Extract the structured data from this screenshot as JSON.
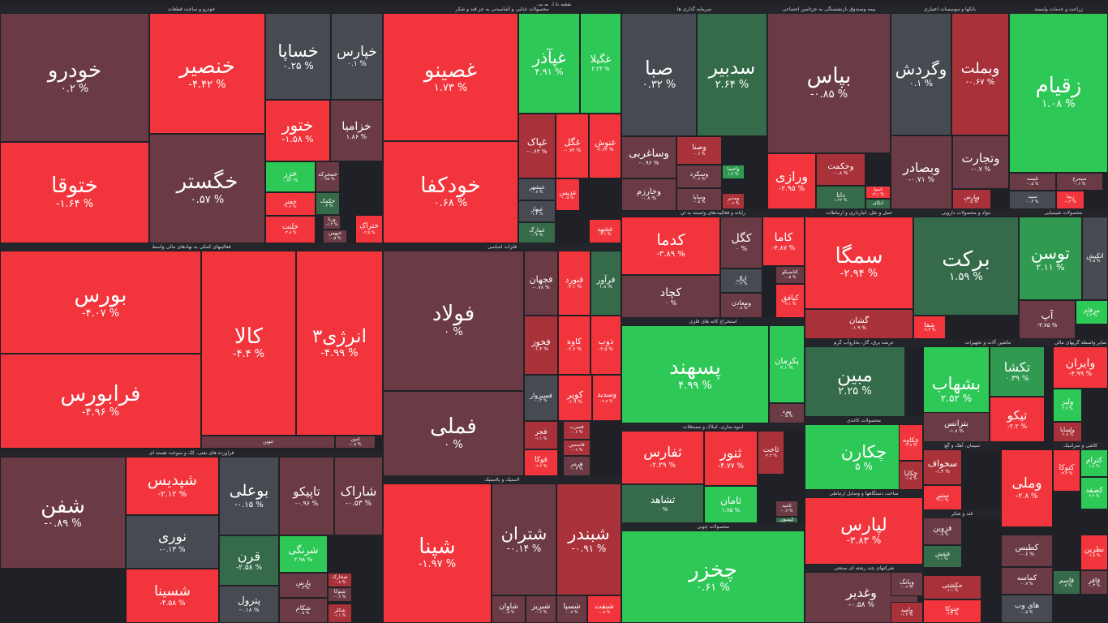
{
  "title": "نقشه بازار بورس",
  "colors": {
    "pos_strong": "#2ec857",
    "pos_mid": "#2f9a50",
    "pos_dim": "#356b4a",
    "neutral": "#484a52",
    "neg_dim": "#6a3b44",
    "neg_mid": "#a8313a",
    "neg_strong": "#f2353c"
  },
  "sectors": [
    {
      "label": "خودرو و ساخت قطعات"
    },
    {
      "label": "محصولات غذایی و آشامیدنی به جز قند و شکر"
    },
    {
      "label": "سرمایه گذاری ها"
    },
    {
      "label": "بیمه وصندوق بازنشستگی به جزتامین اجتماعی"
    },
    {
      "label": "بانکها و موسسات اعتباری"
    },
    {
      "label": "زراعت و خدمات وابسته"
    },
    {
      "label": "فعالیتهای کمکی به نهادهای مالی واسط"
    },
    {
      "label": "فلزات اساسی"
    },
    {
      "label": "رایانه و فعالیت‌های وابسته به آن"
    },
    {
      "label": "حمل و نقل، انبارداری و ارتباطات"
    },
    {
      "label": "مواد و محصولات دارویی"
    },
    {
      "label": "محصولات شیمیایی"
    },
    {
      "label": "فراورده های نفتی، کک و سوخت هسته ای"
    },
    {
      "label": "لاستیک و پلاستیک"
    },
    {
      "label": "استخراج کانه های فلزی"
    },
    {
      "label": "عرضه برق، گاز، بخاروآب گرم"
    },
    {
      "label": "ماشین آلات و تجهیزات"
    },
    {
      "label": "سایر واسطه گریهای مالی"
    },
    {
      "label": "انبوه سازی، املاک و مستغلات"
    },
    {
      "label": "محصولات کاغذی"
    },
    {
      "label": "سیمان، آهک و گچ"
    },
    {
      "label": "کاشی و سرامیک"
    },
    {
      "label": "محصولات چوبی"
    },
    {
      "label": "ساخت دستگاهها و وسایل ارتباطی"
    },
    {
      "label": "قند و شکر"
    },
    {
      "label": "شرکتهای چند رشته ای صنعتی"
    }
  ],
  "tiles": [
    {
      "sym": "خودرو",
      "pct": "۰.۲ %",
      "c": "neg_dim"
    },
    {
      "sym": "ختوقا",
      "pct": "-۱.۶۴ %",
      "c": "neg_strong"
    },
    {
      "sym": "خنصیر",
      "pct": "-۴.۴۲ %",
      "c": "neg_strong"
    },
    {
      "sym": "خگستر",
      "pct": "۰.۵۷ %",
      "c": "neg_dim"
    },
    {
      "sym": "خساپا",
      "pct": "۰.۲۵ %",
      "c": "neutral"
    },
    {
      "sym": "خپارس",
      "pct": "۰.۱ %",
      "c": "neutral"
    },
    {
      "sym": "ختور",
      "pct": "-۱.۵۸ %",
      "c": "neg_strong"
    },
    {
      "sym": "خزامیا",
      "pct": "۱.۸۶ %",
      "c": "neg_dim"
    },
    {
      "sym": "خزر",
      "pct": "۰.۷۲ %",
      "c": "pos_strong"
    },
    {
      "sym": "خمحرکه",
      "pct": "-۰.۸۸ %",
      "c": "neg_dim"
    },
    {
      "sym": "خفنر",
      "pct": "-۱.۶ %",
      "c": "neg_strong"
    },
    {
      "sym": "خکمک",
      "pct": "۰.۴ %",
      "c": "pos_dim"
    },
    {
      "sym": "خلنت",
      "pct": "-۳.۸ %",
      "c": "neg_strong"
    },
    {
      "sym": "ورنا",
      "pct": "-۱.۲ %",
      "c": "neg_dim"
    },
    {
      "sym": "خبهمن",
      "pct": "-۰.۵ %",
      "c": "neg_dim"
    },
    {
      "sym": "ختراک",
      "pct": "-۲.۵ %",
      "c": "neg_strong"
    },
    {
      "sym": "غصینو",
      "pct": "۱.۷۳ %",
      "c": "neg_strong"
    },
    {
      "sym": "خودکفا",
      "pct": "۰.۶۸ %",
      "c": "neg_strong"
    },
    {
      "sym": "غپآذر",
      "pct": "۴.۹۱ %",
      "c": "pos_strong"
    },
    {
      "sym": "غگیلا",
      "pct": "۳.۲۴ %",
      "c": "pos_strong"
    },
    {
      "sym": "غپاک",
      "pct": "-۰.۶۳ %",
      "c": "neg_mid"
    },
    {
      "sym": "غگل",
      "pct": "-۰.۷۳ %",
      "c": "neg_strong"
    },
    {
      "sym": "غنوش",
      "pct": "-۲.۷۴ %",
      "c": "neg_strong"
    },
    {
      "sym": "غبشهر",
      "pct": "-۰.۸ %",
      "c": "neutral"
    },
    {
      "sym": "غبهار",
      "pct": "-۱.۲ %",
      "c": "neutral"
    },
    {
      "sym": "غمارگ",
      "pct": "-۰.۳ %",
      "c": "pos_dim"
    },
    {
      "sym": "غدیس",
      "pct": "-۰.۵ %",
      "c": "neg_strong"
    },
    {
      "sym": "غشهد",
      "pct": "-۲.۱ %",
      "c": "neg_strong"
    },
    {
      "sym": "صبا",
      "pct": "۰.۳۲ %",
      "c": "neutral"
    },
    {
      "sym": "سدبیر",
      "pct": "۲.۶۴ %",
      "c": "pos_dim"
    },
    {
      "sym": "وساغربی",
      "pct": "-۰.۹۶ %",
      "c": "neg_dim"
    },
    {
      "sym": "وصنا",
      "pct": "-۰.۶ %",
      "c": "neg_mid"
    },
    {
      "sym": "وسکرد",
      "pct": "-۰.۷ %",
      "c": "neg_dim"
    },
    {
      "sym": "وخارزم",
      "pct": "-۰.۸ %",
      "c": "neg_dim"
    },
    {
      "sym": "وساپا",
      "pct": "-۰.۵ %",
      "c": "neg_dim"
    },
    {
      "sym": "واحصا",
      "pct": "۱.۲ %",
      "c": "pos_mid"
    },
    {
      "sym": "ومدیر",
      "pct": "-۰.۹ %",
      "c": "neg_mid"
    },
    {
      "sym": "بپاس",
      "pct": "-۰.۸۵ %",
      "c": "neg_dim"
    },
    {
      "sym": "ورازی",
      "pct": "-۲.۹۵ %",
      "c": "neg_strong"
    },
    {
      "sym": "وحکمت",
      "pct": "-۰.۸ %",
      "c": "neg_mid"
    },
    {
      "sym": "دانا",
      "pct": "۱.۴۲ %",
      "c": "pos_dim"
    },
    {
      "sym": "اسیا",
      "pct": "-۲.۱ %",
      "c": "neg_strong"
    },
    {
      "sym": "اتکای",
      "pct": "۰.۵ %",
      "c": "pos_dim"
    },
    {
      "sym": "وگردش",
      "pct": "۰.۱ %",
      "c": "neutral"
    },
    {
      "sym": "وبملت",
      "pct": "-۰.۶۷ %",
      "c": "neg_mid"
    },
    {
      "sym": "وبصادر",
      "pct": "-۰.۷۱ %",
      "c": "neg_dim"
    },
    {
      "sym": "وتجارت",
      "pct": "-۰.۷ %",
      "c": "neg_dim"
    },
    {
      "sym": "وپارس",
      "pct": "-۰.۵ %",
      "c": "neg_mid"
    },
    {
      "sym": "زقیام",
      "pct": "۱.۰۸ %",
      "c": "pos_strong"
    },
    {
      "sym": "تلیسه",
      "pct": "-۰.۵ %",
      "c": "neg_dim"
    },
    {
      "sym": "سیمرغ",
      "pct": "-۰.۶ %",
      "c": "neg_dim"
    },
    {
      "sym": "سپید",
      "pct": "-۰.۴ %",
      "c": "neutral"
    },
    {
      "sym": "زبینا",
      "pct": "-۱.۲ %",
      "c": "neg_strong"
    },
    {
      "sym": "بورس",
      "pct": "-۴.۰۷ %",
      "c": "neg_strong"
    },
    {
      "sym": "فرابورس",
      "pct": "-۴.۹۶ %",
      "c": "neg_strong"
    },
    {
      "sym": "کالا",
      "pct": "-۴.۴ %",
      "c": "neg_strong"
    },
    {
      "sym": "انرژی۳",
      "pct": "-۴.۹۹ %",
      "c": "neg_strong"
    },
    {
      "sym": "ثنوین",
      "pct": "",
      "c": "neg_dim"
    },
    {
      "sym": "امین",
      "pct": "-۰.۸ %",
      "c": "neg_dim"
    },
    {
      "sym": "فولاد",
      "pct": "۰ %",
      "c": "neg_dim"
    },
    {
      "sym": "فملی",
      "pct": "۰ %",
      "c": "neg_dim"
    },
    {
      "sym": "فجهان",
      "pct": "-۰.۷۸ %",
      "c": "neg_dim"
    },
    {
      "sym": "فنورد",
      "pct": "-۳.۱ %",
      "c": "neg_strong"
    },
    {
      "sym": "فرآور",
      "pct": "۱.۸ %",
      "c": "pos_dim"
    },
    {
      "sym": "فخوز",
      "pct": "-۱.۴ %",
      "c": "neg_mid"
    },
    {
      "sym": "کاوه",
      "pct": "-۲.۶ %",
      "c": "neg_strong"
    },
    {
      "sym": "ذوب",
      "pct": "-۳.۵ %",
      "c": "neg_strong"
    },
    {
      "sym": "فسبزوار",
      "pct": "-۰.۴ %",
      "c": "neutral"
    },
    {
      "sym": "کویر",
      "pct": "-۱.۹ %",
      "c": "neg_strong"
    },
    {
      "sym": "وسدید",
      "pct": "-۲.۸ %",
      "c": "neg_strong"
    },
    {
      "sym": "فجر",
      "pct": "-۱.۱ %",
      "c": "neg_mid"
    },
    {
      "sym": "فسرب",
      "pct": "-۰.۶ %",
      "c": "neg_mid"
    },
    {
      "sym": "فاسمین",
      "pct": "-۰.۹ %",
      "c": "neg_mid"
    },
    {
      "sym": "فوکا",
      "pct": "-۲.۴ %",
      "c": "neg_strong"
    },
    {
      "sym": "هرمز",
      "pct": "-۰.۷ %",
      "c": "neg_dim"
    },
    {
      "sym": "کدما",
      "pct": "-۳.۸۹ %",
      "c": "neg_strong"
    },
    {
      "sym": "کچاد",
      "pct": "۰ %",
      "c": "neg_dim"
    },
    {
      "sym": "کگل",
      "pct": "۰ %",
      "c": "neg_dim"
    },
    {
      "sym": "کاما",
      "pct": "-۴.۸۷ %",
      "c": "neg_strong"
    },
    {
      "sym": "اپال",
      "pct": "-۰.۳ %",
      "c": "neutral"
    },
    {
      "sym": "کتاصیکو",
      "pct": "-۰.۵ %",
      "c": "neg_dim"
    },
    {
      "sym": "ومعادن",
      "pct": "-۰.۸ %",
      "c": "neg_dim"
    },
    {
      "sym": "کیافق",
      "pct": "-۲.۱ %",
      "c": "neg_strong"
    },
    {
      "sym": "سمگا",
      "pct": "-۲.۹۴ %",
      "c": "neg_strong"
    },
    {
      "sym": "گشان",
      "pct": "-۱.۹ %",
      "c": "neg_mid"
    },
    {
      "sym": "برکت",
      "pct": "۱.۵۹ %",
      "c": "pos_dim"
    },
    {
      "sym": "شفا",
      "pct": "-۲.۳ %",
      "c": "neg_strong"
    },
    {
      "sym": "توسن",
      "pct": "۲.۱۱ %",
      "c": "pos_mid"
    },
    {
      "sym": "اتکیش",
      "pct": "۲.۵ %",
      "c": "neutral"
    },
    {
      "sym": "آپ",
      "pct": "-۳.۷۵ %",
      "c": "neg_dim"
    },
    {
      "sym": "مرقام",
      "pct": "۴.۲ %",
      "c": "pos_strong"
    },
    {
      "sym": "پسهند",
      "pct": "۴.۹۹ %",
      "c": "pos_strong"
    },
    {
      "sym": "پکرمان",
      "pct": "۳.۱ %",
      "c": "pos_strong"
    },
    {
      "sym": "پیزد",
      "pct": "-۰.۵ %",
      "c": "neg_dim"
    },
    {
      "sym": "ثفارس",
      "pct": "-۲.۲۹ %",
      "c": "neg_strong"
    },
    {
      "sym": "ثشاهد",
      "pct": "۰ %",
      "c": "pos_dim"
    },
    {
      "sym": "ثنور",
      "pct": "-۴.۷۷ %",
      "c": "neg_strong"
    },
    {
      "sym": "ثامان",
      "pct": "۱.۷۵ %",
      "c": "pos_strong"
    },
    {
      "sym": "ثاخت",
      "pct": "-۲.۳ %",
      "c": "neg_mid"
    },
    {
      "sym": "ثامید",
      "pct": "-۰.۷ %",
      "c": "neg_dim"
    },
    {
      "sym": "کیسون",
      "pct": "۰.۵ %",
      "c": "pos_dim"
    },
    {
      "sym": "چخزر",
      "pct": "۰.۶۱ %",
      "c": "pos_strong"
    },
    {
      "sym": "مبین",
      "pct": "۲.۲۵ %",
      "c": "pos_dim"
    },
    {
      "sym": "چکارن",
      "pct": "۵ %",
      "c": "pos_strong"
    },
    {
      "sym": "چکاوه",
      "pct": "-۲.۸ %",
      "c": "neg_strong"
    },
    {
      "sym": "چکاپا",
      "pct": "-۱.۵ %",
      "c": "neg_mid"
    },
    {
      "sym": "لپارس",
      "pct": "-۳.۸۳ %",
      "c": "neg_strong"
    },
    {
      "sym": "وغدیر",
      "pct": "-۰.۵۸ %",
      "c": "neg_dim"
    },
    {
      "sym": "وبانک",
      "pct": "-۰.۹ %",
      "c": "neg_dim"
    },
    {
      "sym": "وامید",
      "pct": "-۱.۳ %",
      "c": "neg_mid"
    },
    {
      "sym": "بشهاب",
      "pct": "۲.۵۲ %",
      "c": "pos_strong"
    },
    {
      "sym": "بترانس",
      "pct": "-۱.۸ %",
      "c": "neg_dim"
    },
    {
      "sym": "تکشا",
      "pct": "۰.۳۹ %",
      "c": "pos_mid"
    },
    {
      "sym": "تیکو",
      "pct": "-۲.۲ %",
      "c": "neg_strong"
    },
    {
      "sym": "وایران",
      "pct": "-۴.۹۹ %",
      "c": "neg_strong"
    },
    {
      "sym": "ولیز",
      "pct": "۲.۷ %",
      "c": "pos_strong"
    },
    {
      "sym": "ولساپا",
      "pct": "-۱.۸ %",
      "c": "neg_mid"
    },
    {
      "sym": "سخواف",
      "pct": "-۱.۴ %",
      "c": "neg_mid"
    },
    {
      "sym": "ستیر",
      "pct": "-۲.۱ %",
      "c": "neg_strong"
    },
    {
      "sym": "وملی",
      "pct": "-۲.۸ %",
      "c": "neg_strong"
    },
    {
      "sym": "کتوکا",
      "pct": "-۳.۲ %",
      "c": "neg_strong"
    },
    {
      "sym": "کترام",
      "pct": "۱.۸ %",
      "c": "pos_strong"
    },
    {
      "sym": "کصفد",
      "pct": "۲.۴ %",
      "c": "pos_strong"
    },
    {
      "sym": "قزوین",
      "pct": "-۰.۸ %",
      "c": "neg_dim"
    },
    {
      "sym": "قنقش",
      "pct": "۱.۱ %",
      "c": "pos_dim"
    },
    {
      "sym": "کطبس",
      "pct": "-۰.۶ %",
      "c": "neg_dim"
    },
    {
      "sym": "کماسه",
      "pct": "-۰.۷ %",
      "c": "neg_dim"
    },
    {
      "sym": "حکشتی",
      "pct": "-۱.۱ %",
      "c": "neg_mid"
    },
    {
      "sym": "حتوکا",
      "pct": "-۲.۴ %",
      "c": "neg_strong"
    },
    {
      "sym": "های وب",
      "pct": "-۰.۵ %",
      "c": "neutral"
    },
    {
      "sym": "نطرین",
      "pct": "-۱.۸ %",
      "c": "neg_strong"
    },
    {
      "sym": "قاسم",
      "pct": "۰.۸ %",
      "c": "pos_dim"
    },
    {
      "sym": "فافر",
      "pct": "-۰.۳ %",
      "c": "neg_dim"
    },
    {
      "sym": "شفن",
      "pct": "-۰.۸۹ %",
      "c": "neg_dim"
    },
    {
      "sym": "شپدیس",
      "pct": "-۲.۱۲ %",
      "c": "neg_strong"
    },
    {
      "sym": "نوری",
      "pct": "-۰.۱۳ %",
      "c": "neutral"
    },
    {
      "sym": "شسینا",
      "pct": "-۴.۵۸ %",
      "c": "neg_strong"
    },
    {
      "sym": "بوعلی",
      "pct": "-۰.۱۵ %",
      "c": "neutral"
    },
    {
      "sym": "تاپیکو",
      "pct": "-۰.۹۶ %",
      "c": "neg_dim"
    },
    {
      "sym": "شاراک",
      "pct": "-۰.۵۳ %",
      "c": "neg_dim"
    },
    {
      "sym": "قرن",
      "pct": "-۲.۵۸ %",
      "c": "pos_dim"
    },
    {
      "sym": "شرنگی",
      "pct": "۲.۹۸ %",
      "c": "pos_strong"
    },
    {
      "sym": "پترول",
      "pct": "-۰.۱۸ %",
      "c": "neutral"
    },
    {
      "sym": "پارس",
      "pct": "-۰.۴ %",
      "c": "neg_dim"
    },
    {
      "sym": "شکام",
      "pct": "-۰.۵ %",
      "c": "neg_dim"
    },
    {
      "sym": "شخارک",
      "pct": "-۰.۸ %",
      "c": "neg_mid"
    },
    {
      "sym": "شتوکا",
      "pct": "-۰.۶ %",
      "c": "neg_dim"
    },
    {
      "sym": "شکلر",
      "pct": "-۱.۱ %",
      "c": "neg_mid"
    },
    {
      "sym": "شپنا",
      "pct": "-۱.۹۷ %",
      "c": "neg_strong"
    },
    {
      "sym": "شتران",
      "pct": "-۰.۱۴ %",
      "c": "neg_dim"
    },
    {
      "sym": "شبندر",
      "pct": "-۰.۹۱ %",
      "c": "neg_mid"
    },
    {
      "sym": "شاوان",
      "pct": "-۰.۵ %",
      "c": "neg_dim"
    },
    {
      "sym": "شبریز",
      "pct": "-۰.۶ %",
      "c": "neg_dim"
    },
    {
      "sym": "شسپا",
      "pct": "-۰.۷ %",
      "c": "neg_dim"
    },
    {
      "sym": "شنفت",
      "pct": "-۰.۸ %",
      "c": "neg_strong"
    }
  ]
}
